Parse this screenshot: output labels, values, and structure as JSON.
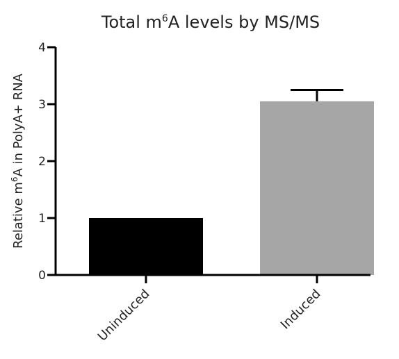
{
  "chart_data": {
    "type": "bar",
    "title_parts": [
      "Total m",
      "6",
      "A levels by MS/MS"
    ],
    "ylabel_parts": [
      "Relative m",
      "6",
      "A in PolyA+ RNA"
    ],
    "xlabel": "",
    "categories": [
      "Uninduced",
      "Induced"
    ],
    "values": [
      1.0,
      3.05
    ],
    "error_upper": [
      0,
      0.2
    ],
    "colors": [
      "#000000",
      "#a6a6a6"
    ],
    "ylim": [
      0,
      4
    ],
    "yticks": [
      "0",
      "1",
      "2",
      "3",
      "4"
    ],
    "grid": false
  }
}
